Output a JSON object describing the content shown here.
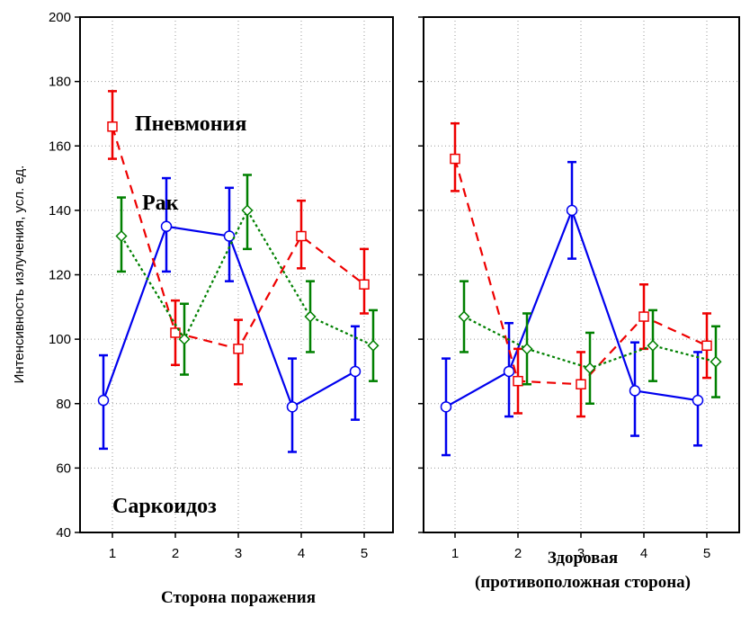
{
  "chart_data": {
    "type": "line",
    "ylabel": "Интенсивность излучения, усл. ед.",
    "ylim": [
      40,
      200
    ],
    "yticks": [
      "40",
      "60",
      "80",
      "100",
      "120",
      "140",
      "160",
      "180",
      "200"
    ],
    "grid": true,
    "panels": [
      {
        "xlabel": "Сторона поражения",
        "xlabel_lines": [
          "Сторона поражения"
        ],
        "categories": [
          "1",
          "2",
          "3",
          "4",
          "5"
        ],
        "series": [
          {
            "color": "#0000ee",
            "style": "solid",
            "marker": "circle",
            "values": [
              81,
              135,
              132,
              79,
              90
            ],
            "err_low": [
              66,
              121,
              118,
              65,
              75
            ],
            "err_high": [
              95,
              150,
              147,
              94,
              104
            ]
          },
          {
            "color": "#ee0000",
            "style": "dashed",
            "marker": "square",
            "values": [
              166,
              102,
              97,
              132,
              117
            ],
            "err_low": [
              156,
              92,
              86,
              122,
              108
            ],
            "err_high": [
              177,
              112,
              106,
              143,
              128
            ]
          },
          {
            "color": "#008000",
            "style": "dotted",
            "marker": "diamond",
            "values": [
              132,
              100,
              140,
              107,
              98
            ],
            "err_low": [
              121,
              89,
              128,
              96,
              87
            ],
            "err_high": [
              144,
              111,
              151,
              118,
              109
            ]
          }
        ]
      },
      {
        "xlabel": "Здоровая (противоположная сторона)",
        "xlabel_lines": [
          "Здоровая",
          "(противоположная сторона)"
        ],
        "categories": [
          "1",
          "2",
          "3",
          "4",
          "5"
        ],
        "series": [
          {
            "color": "#0000ee",
            "style": "solid",
            "marker": "circle",
            "values": [
              79,
              90,
              140,
              84,
              81
            ],
            "err_low": [
              64,
              76,
              125,
              70,
              67
            ],
            "err_high": [
              94,
              105,
              155,
              99,
              96
            ]
          },
          {
            "color": "#ee0000",
            "style": "dashed",
            "marker": "square",
            "values": [
              156,
              87,
              86,
              107,
              98
            ],
            "err_low": [
              146,
              77,
              76,
              97,
              88
            ],
            "err_high": [
              167,
              97,
              96,
              117,
              108
            ]
          },
          {
            "color": "#008000",
            "style": "dotted",
            "marker": "diamond",
            "values": [
              107,
              97,
              91,
              98,
              93
            ],
            "err_low": [
              96,
              86,
              80,
              87,
              82
            ],
            "err_high": [
              118,
              108,
              102,
              109,
              104
            ]
          }
        ]
      }
    ],
    "annotations": [
      "Пневмония",
      "Рак",
      "Саркоидоз"
    ]
  }
}
